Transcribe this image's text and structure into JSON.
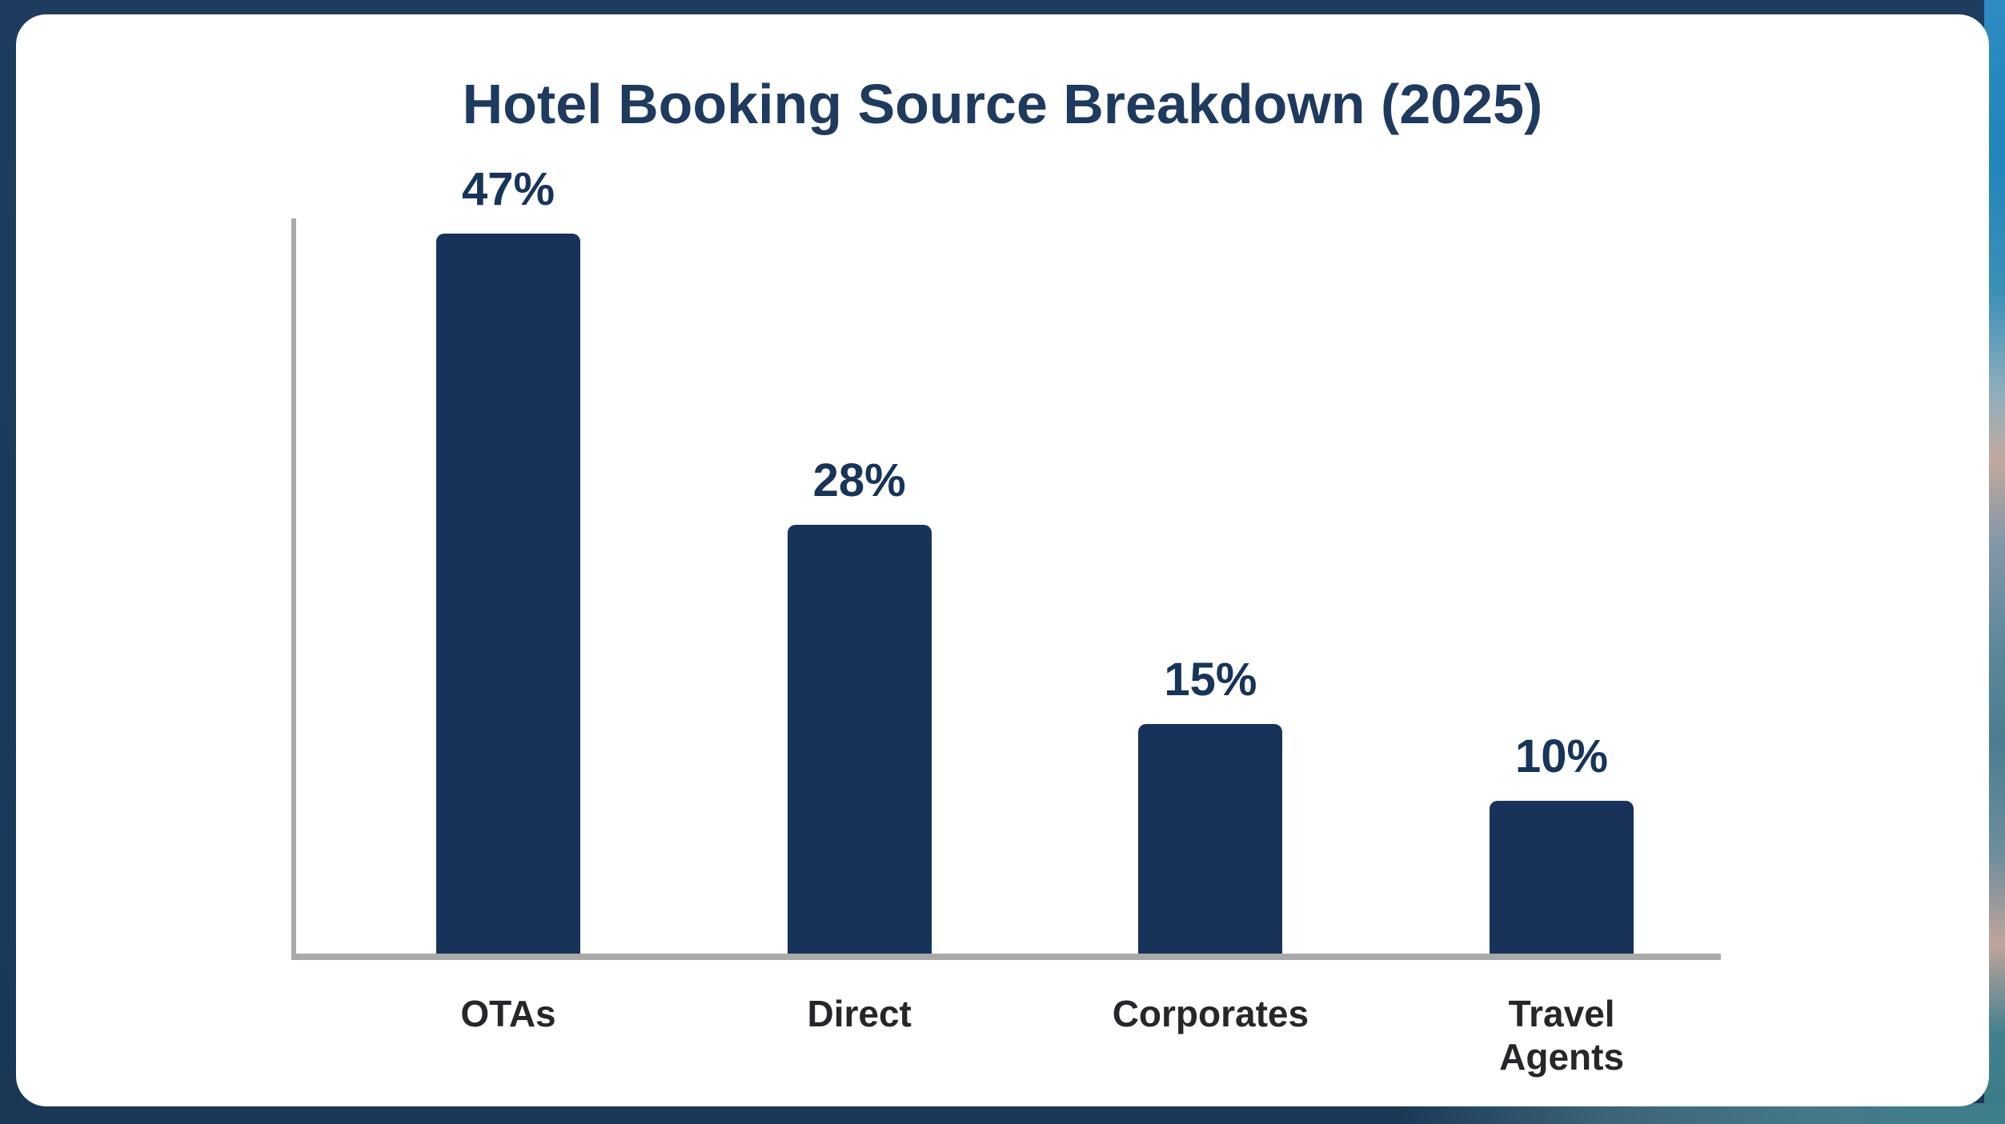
{
  "chart_data": {
    "type": "bar",
    "title": "Hotel Booking Source Breakdown (2025)",
    "categories": [
      "OTAs",
      "Direct",
      "Corporates",
      "Travel Agents"
    ],
    "values": [
      47,
      28,
      15,
      10
    ],
    "value_labels": [
      "47%",
      "28%",
      "15%",
      "10%"
    ],
    "unit": "%",
    "ylim": [
      0,
      48
    ],
    "grid": false,
    "legend": false,
    "xlabel": "",
    "ylabel": "",
    "colors": {
      "bar": "#17335A",
      "title": "#1E3A5F",
      "value_label": "#17345A",
      "category_label": "#26262B",
      "axis": "#A9A9A9",
      "card_background": "#FFFFFF",
      "page_background": "#1C3A5C",
      "photo_edge_sky": "#2285BB",
      "photo_edge_cloud": "#C2A89D",
      "photo_edge_sea": "#3E7E8A"
    }
  }
}
